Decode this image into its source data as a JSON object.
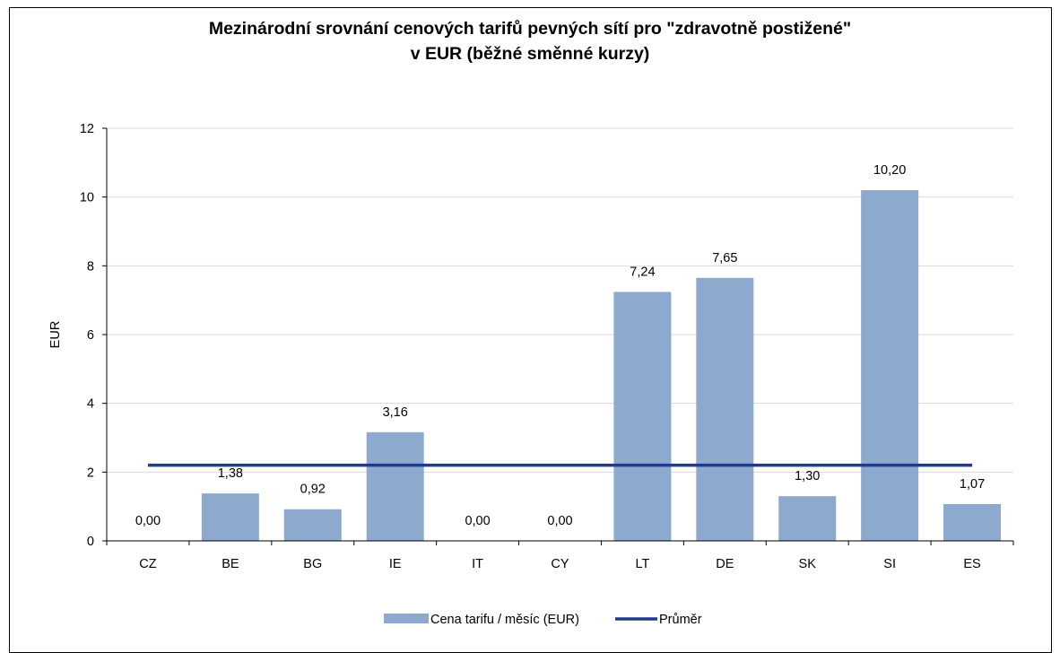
{
  "chart_data": {
    "type": "bar",
    "title": "Mezinárodní srovnání cenových tarifů pevných sítí pro \"zdravotně postižené\"",
    "subtitle": "v EUR (běžné směnné kurzy)",
    "ylabel": "EUR",
    "xlabel": "",
    "ylim": [
      0,
      12
    ],
    "yticks": [
      "0",
      "2",
      "4",
      "6",
      "8",
      "10",
      "12"
    ],
    "grid": true,
    "legend_position": "bottom",
    "categories": [
      "CZ",
      "BE",
      "BG",
      "IE",
      "IT",
      "CY",
      "LT",
      "DE",
      "SK",
      "SI",
      "ES"
    ],
    "series": [
      {
        "name": "Cena tarifu / měsíc (EUR)",
        "type": "bar",
        "color": "#8EA9CE",
        "values": [
          0.0,
          1.38,
          0.92,
          3.16,
          0.0,
          0.0,
          7.24,
          7.65,
          1.3,
          10.2,
          1.07
        ],
        "labels": [
          "0,00",
          "1,38",
          "0,92",
          "3,16",
          "0,00",
          "0,00",
          "7,24",
          "7,65",
          "1,30",
          "10,20",
          "1,07"
        ]
      },
      {
        "name": "Průměr",
        "type": "line",
        "color": "#1F3A93",
        "values": [
          2.2,
          2.2,
          2.2,
          2.2,
          2.2,
          2.2,
          2.2,
          2.2,
          2.2,
          2.2,
          2.2
        ]
      }
    ]
  }
}
